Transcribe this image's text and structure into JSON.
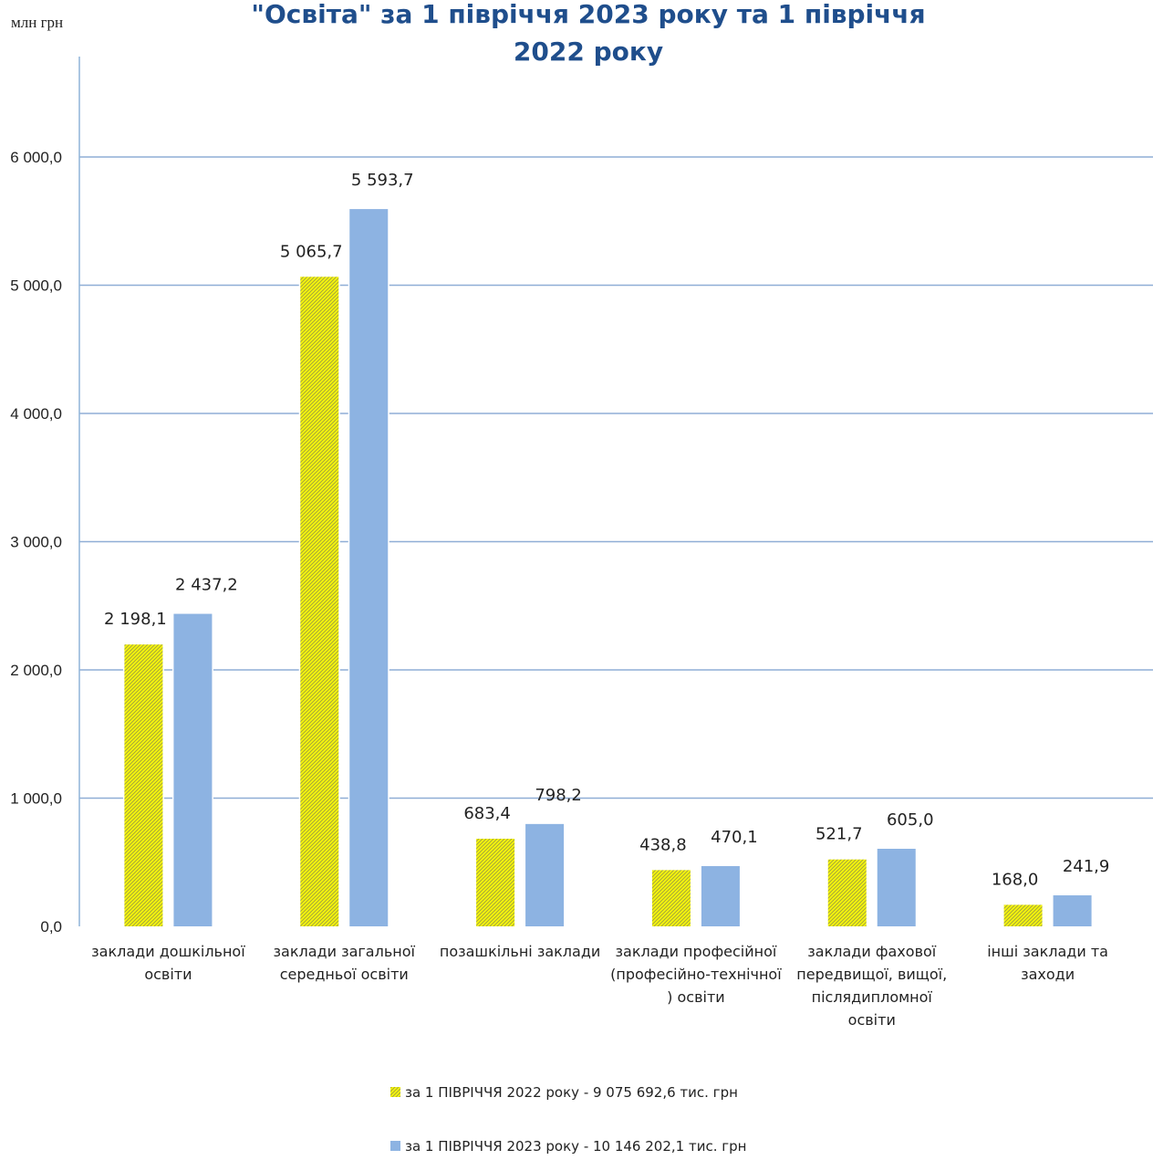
{
  "chart_data": {
    "type": "bar",
    "title_lines": [
      "\"Освіта\" за 1 півріччя 2023 року та 1 півріччя",
      "2022 року"
    ],
    "unit_label": "млн грн",
    "categories": [
      [
        "заклади дошкільної",
        "освіти"
      ],
      [
        "заклади загальної",
        "середньої освіти"
      ],
      [
        "позашкільні заклади"
      ],
      [
        "заклади професійної",
        "(професійно-технічної",
        ") освіти"
      ],
      [
        "заклади фахової",
        "передвищої, вищої,",
        "післядипломної",
        "освіти"
      ],
      [
        "інші заклади та",
        "заходи"
      ]
    ],
    "series": [
      {
        "name": "за 1 ПІВРІЧЧЯ 2022 року - 9 075 692,6 тис. грн",
        "values": [
          2198.1,
          5065.7,
          683.4,
          438.8,
          521.7,
          168.0
        ],
        "labels": [
          "2 198,1",
          "5 065,7",
          "683,4",
          "438,8",
          "521,7",
          "168,0"
        ],
        "color": "#f2f21a",
        "pattern": "hatched"
      },
      {
        "name": "за 1 ПІВРІЧЧЯ 2023 року - 10 146 202,1 тис. грн",
        "values": [
          2437.2,
          5593.7,
          798.2,
          470.1,
          605.0,
          241.9
        ],
        "labels": [
          "2 437,2",
          "5 593,7",
          "798,2",
          "470,1",
          "605,0",
          "241,9"
        ],
        "color": "#8db3e2",
        "pattern": "solid"
      }
    ],
    "ylim": [
      0,
      6000
    ],
    "yticks": [
      0,
      1000,
      2000,
      3000,
      4000,
      5000,
      6000
    ],
    "ytick_labels": [
      "0,0",
      "1 000,0",
      "2 000,0",
      "3 000,0",
      "4 000,0",
      "5 000,0",
      "6 000,0"
    ],
    "grid": true,
    "legend_position": "bottom"
  }
}
